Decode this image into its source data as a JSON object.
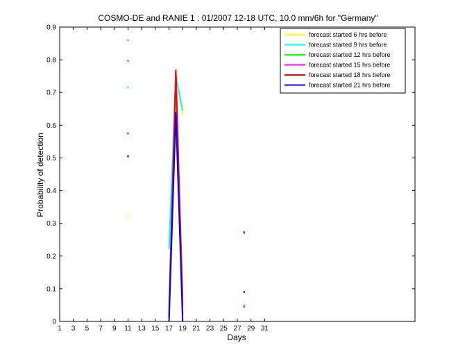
{
  "chart_data": {
    "type": "line",
    "title": "COSMO-DE and RANIE 1 : 01/2007 12-18 UTC, 10.0 mm/6h for \"Germany\"",
    "xlabel": "Days",
    "ylabel": "Probability of detection",
    "xlim": [
      1,
      53
    ],
    "ylim": [
      0,
      0.9
    ],
    "xticks": [
      1,
      3,
      5,
      7,
      9,
      11,
      13,
      15,
      17,
      19,
      21,
      23,
      25,
      27,
      29,
      31
    ],
    "yticks": [
      0,
      0.1,
      0.2,
      0.3,
      0.4,
      0.5,
      0.6,
      0.7,
      0.8,
      0.9
    ],
    "legend_position": "top-right",
    "series": [
      {
        "name": "forecast started 6 hrs before",
        "color": "#ffff00",
        "points": [
          [
            11,
            0.32
          ],
          [
            17,
            0.22
          ],
          [
            18,
            0.76
          ],
          [
            19,
            0.63
          ],
          [
            28,
            0.05
          ]
        ]
      },
      {
        "name": "forecast started 9 hrs before",
        "color": "#00ffff",
        "points": [
          [
            11,
            0.715
          ],
          [
            17,
            0.22
          ],
          [
            18,
            0.75
          ],
          [
            19,
            0.645
          ],
          [
            28,
            0.05
          ]
        ]
      },
      {
        "name": "forecast started 12 hrs before",
        "color": "#00ff00",
        "points": [
          [
            11,
            0.86
          ],
          [
            17,
            0.05
          ],
          [
            18,
            0.73
          ],
          [
            19,
            0.08
          ],
          [
            28,
            0.27
          ]
        ]
      },
      {
        "name": "forecast started 15 hrs before",
        "color": "#ff00ff",
        "points": [
          [
            11,
            0.797
          ],
          [
            17,
            0.02
          ],
          [
            18,
            0.765
          ],
          [
            19,
            0.05
          ],
          [
            28,
            0.045
          ]
        ]
      },
      {
        "name": "forecast started 18 hrs before",
        "color": "#ff0000",
        "points": [
          [
            11,
            0.575
          ],
          [
            17,
            0.01
          ],
          [
            18,
            0.77
          ],
          [
            19,
            0.02
          ],
          [
            28,
            0.273
          ]
        ]
      },
      {
        "name": "forecast started 21 hrs before",
        "color": "#0000ff",
        "points": [
          [
            11,
            0.505
          ],
          [
            17,
            0.0
          ],
          [
            18,
            0.64
          ],
          [
            19,
            0.0
          ],
          [
            28,
            0.09
          ]
        ]
      }
    ]
  }
}
